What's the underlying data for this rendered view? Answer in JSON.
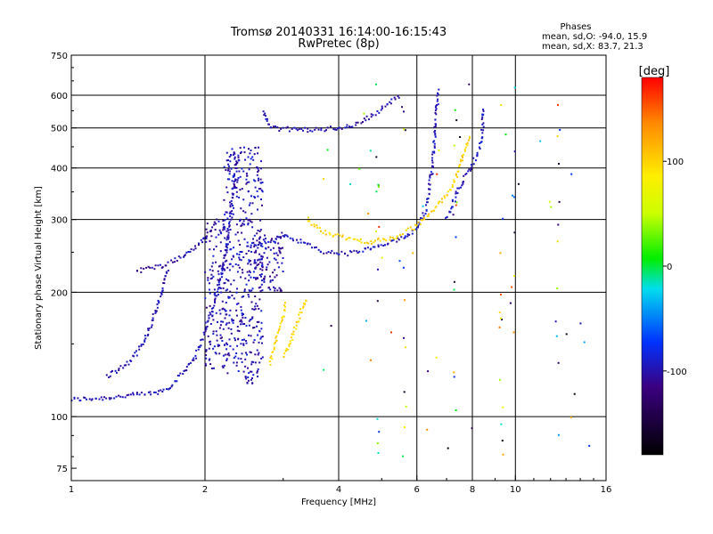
{
  "chart_data": {
    "type": "scatter",
    "title": "Tromsø 20140331 16:14:00-16:15:43",
    "subtitle": "RwPretec (8p)",
    "xlabel": "Frequency [MHz]",
    "ylabel": "Stationary phase Virtual Height [km]",
    "xscale": "log",
    "yscale": "log",
    "xlim": [
      1,
      16
    ],
    "ylim": [
      70,
      750
    ],
    "xticks": [
      1,
      2,
      4,
      6,
      8,
      10,
      16
    ],
    "xtick_labels": [
      "1",
      "2",
      "4",
      "6",
      "8",
      "10",
      "16"
    ],
    "yticks": [
      75,
      100,
      200,
      300,
      400,
      500,
      600,
      750
    ],
    "ytick_labels": [
      "75",
      "100",
      "200",
      "300",
      "400",
      "500",
      "600",
      "750"
    ],
    "grid": true,
    "phase_info": {
      "heading": "Phases",
      "line_o": "mean, sd,O: -94.0, 15.9",
      "line_x": "mean, sd,X:  83.7, 21.3"
    },
    "colorbar": {
      "label": "[deg]",
      "range": [
        -180,
        180
      ],
      "ticks": [
        100,
        0,
        -100
      ],
      "tick_labels": [
        "100",
        "0",
        "-100"
      ]
    },
    "traces": [
      {
        "phase": -98,
        "points": [
          [
            1.0,
            110
          ],
          [
            1.2,
            111
          ],
          [
            1.4,
            113
          ],
          [
            1.55,
            114
          ],
          [
            1.65,
            117
          ],
          [
            1.72,
            122
          ],
          [
            1.8,
            130
          ],
          [
            1.9,
            140
          ],
          [
            2.0,
            160
          ],
          [
            2.1,
            190
          ],
          [
            2.2,
            230
          ],
          [
            2.25,
            270
          ],
          [
            2.3,
            330
          ],
          [
            2.35,
            400
          ],
          [
            2.38,
            430
          ]
        ]
      },
      {
        "phase": -100,
        "points": [
          [
            1.2,
            125
          ],
          [
            1.35,
            135
          ],
          [
            1.45,
            150
          ],
          [
            1.52,
            170
          ],
          [
            1.6,
            200
          ],
          [
            1.65,
            230
          ]
        ]
      },
      {
        "phase": -102,
        "points": [
          [
            1.4,
            225
          ],
          [
            1.6,
            232
          ],
          [
            1.8,
            245
          ],
          [
            2.0,
            270
          ],
          [
            2.15,
            300
          ]
        ]
      },
      {
        "phase": -96,
        "points": [
          [
            2.5,
            255
          ],
          [
            2.8,
            265
          ],
          [
            3.0,
            275
          ],
          [
            3.3,
            265
          ],
          [
            3.7,
            250
          ],
          [
            4.2,
            248
          ],
          [
            4.8,
            256
          ],
          [
            5.5,
            268
          ],
          [
            6.0,
            285
          ],
          [
            6.3,
            320
          ],
          [
            6.5,
            400
          ],
          [
            6.6,
            500
          ],
          [
            6.7,
            620
          ]
        ]
      },
      {
        "phase": -100,
        "points": [
          [
            2.7,
            550
          ],
          [
            2.8,
            500
          ],
          [
            3.2,
            495
          ],
          [
            3.6,
            495
          ],
          [
            4.0,
            500
          ],
          [
            4.4,
            510
          ],
          [
            4.8,
            540
          ],
          [
            5.2,
            575
          ],
          [
            5.5,
            600
          ]
        ]
      },
      {
        "phase": 100,
        "points": [
          [
            3.4,
            300
          ],
          [
            3.6,
            285
          ],
          [
            3.9,
            275
          ],
          [
            4.3,
            268
          ],
          [
            4.8,
            265
          ],
          [
            5.4,
            272
          ],
          [
            6.0,
            290
          ],
          [
            6.6,
            320
          ],
          [
            7.2,
            360
          ],
          [
            7.6,
            420
          ],
          [
            7.9,
            480
          ]
        ]
      },
      {
        "phase": 98,
        "points": [
          [
            3.0,
            140
          ],
          [
            3.1,
            150
          ],
          [
            3.2,
            165
          ],
          [
            3.3,
            180
          ],
          [
            3.4,
            195
          ]
        ]
      },
      {
        "phase": 96,
        "points": [
          [
            2.8,
            135
          ],
          [
            2.9,
            155
          ],
          [
            3.0,
            175
          ],
          [
            3.05,
            190
          ]
        ]
      },
      {
        "phase": -95,
        "points": [
          [
            7.0,
            300
          ],
          [
            7.4,
            350
          ],
          [
            7.8,
            390
          ],
          [
            8.2,
            430
          ],
          [
            8.4,
            470
          ],
          [
            8.5,
            560
          ]
        ]
      }
    ],
    "clusters": [
      {
        "phase": -98,
        "x_range": [
          2.2,
          2.7
        ],
        "y_range": [
          120,
          450
        ],
        "count": 420
      },
      {
        "phase": -100,
        "x_range": [
          2.0,
          2.25
        ],
        "y_range": [
          130,
          300
        ],
        "count": 130
      },
      {
        "phase": -103,
        "x_range": [
          2.6,
          3.0
        ],
        "y_range": [
          200,
          280
        ],
        "count": 90
      }
    ],
    "noise_count": 110
  }
}
